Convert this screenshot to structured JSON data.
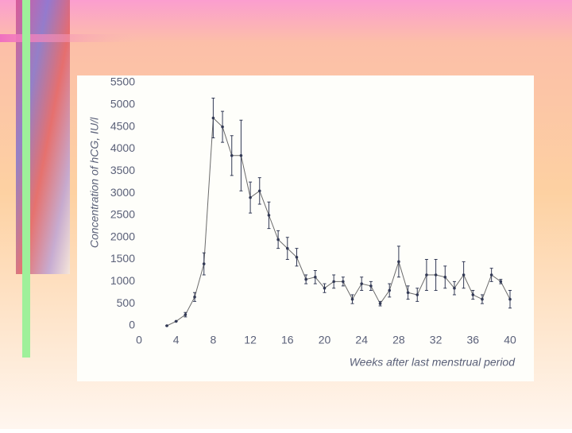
{
  "chart_data": {
    "type": "line",
    "y_label": "Concentration of hCG, IU/l",
    "x_label": "Weeks after last menstrual period",
    "x": [
      3,
      4,
      5,
      6,
      7,
      8,
      9,
      10,
      11,
      12,
      13,
      14,
      15,
      16,
      17,
      18,
      19,
      20,
      21,
      22,
      23,
      24,
      25,
      26,
      27,
      28,
      29,
      30,
      31,
      32,
      33,
      34,
      35,
      36,
      37,
      38,
      39,
      40
    ],
    "values": [
      0,
      100,
      250,
      650,
      1400,
      4700,
      4500,
      3850,
      3850,
      2900,
      3050,
      2500,
      1950,
      1750,
      1550,
      1050,
      1100,
      850,
      1000,
      1000,
      600,
      950,
      900,
      500,
      800,
      1450,
      750,
      700,
      1150,
      1150,
      1100,
      850,
      1150,
      700,
      600,
      1150,
      1000,
      600
    ],
    "errors": [
      0,
      0,
      50,
      100,
      250,
      450,
      350,
      450,
      800,
      350,
      300,
      300,
      200,
      250,
      200,
      100,
      150,
      100,
      150,
      100,
      100,
      150,
      100,
      50,
      150,
      350,
      150,
      150,
      350,
      350,
      250,
      150,
      300,
      100,
      100,
      150,
      50,
      200
    ],
    "color": "#6b6b6b",
    "marker_color": "#333a55",
    "xlim": [
      0,
      40
    ],
    "xticks": [
      0,
      4,
      8,
      12,
      16,
      20,
      24,
      28,
      32,
      36,
      40
    ],
    "ylim": [
      0,
      5500
    ],
    "yticks": [
      0,
      500,
      1000,
      1500,
      2000,
      2500,
      3000,
      3500,
      4000,
      4500,
      5000,
      5500
    ]
  }
}
